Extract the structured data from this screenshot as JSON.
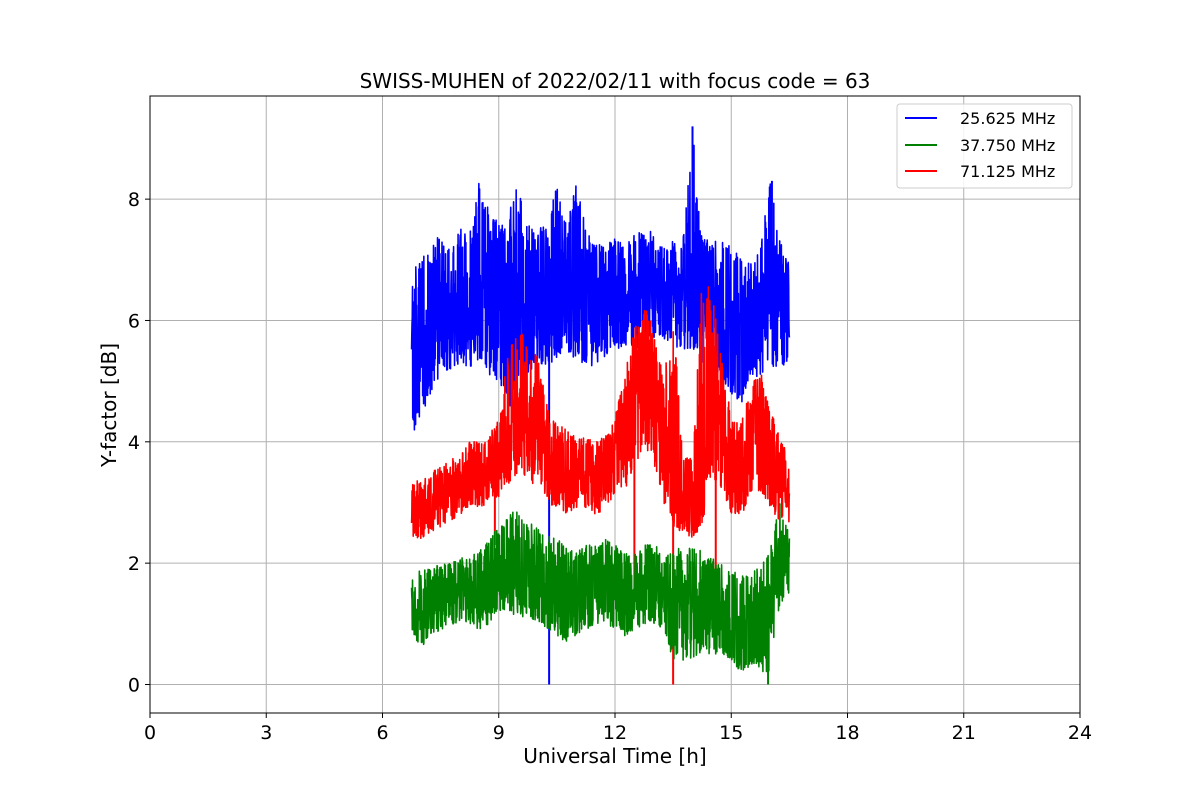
{
  "chart_data": {
    "type": "line",
    "title": "SWISS-MUHEN of 2022/02/11 with focus code = 63",
    "xlabel": "Universal Time [h]",
    "ylabel": "Y-factor [dB]",
    "xlim": [
      0,
      24
    ],
    "ylim": [
      -0.47,
      9.7
    ],
    "xticks": [
      0,
      3,
      6,
      9,
      12,
      15,
      18,
      21,
      24
    ],
    "yticks": [
      0,
      2,
      4,
      6,
      8
    ],
    "grid": true,
    "legend_position": "top-right",
    "series": [
      {
        "name": "25.625 MHz",
        "color": "#0000ff",
        "x": [
          6.75,
          7.0,
          7.25,
          7.5,
          7.75,
          8.0,
          8.25,
          8.5,
          8.75,
          9.0,
          9.25,
          9.5,
          9.75,
          10.0,
          10.25,
          10.5,
          10.75,
          11.0,
          11.25,
          11.5,
          11.75,
          12.0,
          12.25,
          12.5,
          12.75,
          13.0,
          13.25,
          13.5,
          13.75,
          14.0,
          14.25,
          14.5,
          14.75,
          15.0,
          15.25,
          15.5,
          15.75,
          16.0,
          16.25,
          16.5
        ],
        "mean": [
          5.9,
          5.7,
          5.9,
          6.0,
          6.0,
          6.1,
          6.2,
          6.3,
          6.2,
          6.1,
          6.0,
          6.1,
          6.0,
          6.2,
          6.2,
          6.3,
          6.4,
          6.3,
          6.2,
          6.2,
          6.2,
          6.3,
          6.3,
          6.4,
          6.4,
          6.5,
          6.5,
          6.4,
          6.3,
          6.4,
          6.3,
          6.3,
          6.1,
          6.0,
          5.8,
          5.9,
          6.0,
          6.1,
          6.2,
          6.2
        ],
        "low": [
          4.1,
          4.4,
          4.8,
          5.1,
          5.2,
          5.3,
          5.2,
          5.3,
          5.1,
          5.0,
          4.5,
          5.0,
          5.1,
          5.3,
          5.2,
          5.4,
          5.5,
          5.3,
          5.3,
          5.2,
          5.4,
          5.5,
          5.6,
          5.5,
          5.6,
          5.7,
          5.7,
          5.6,
          5.5,
          5.5,
          5.3,
          5.3,
          5.0,
          4.8,
          4.6,
          5.0,
          5.1,
          5.2,
          5.2,
          5.3
        ],
        "high": [
          6.9,
          7.0,
          7.3,
          7.4,
          7.2,
          7.5,
          7.6,
          8.3,
          7.8,
          7.6,
          7.7,
          8.4,
          7.6,
          7.6,
          7.5,
          8.3,
          7.6,
          8.3,
          7.5,
          7.3,
          7.2,
          7.4,
          7.3,
          7.5,
          7.4,
          7.5,
          7.3,
          7.3,
          7.3,
          9.2,
          7.4,
          7.3,
          7.4,
          7.2,
          7.1,
          7.0,
          7.2,
          8.3,
          7.4,
          6.9
        ],
        "spikes": [
          [
            10.3,
            0.0
          ],
          [
            14.0,
            9.2
          ],
          [
            16.05,
            8.3
          ]
        ]
      },
      {
        "name": "37.750 MHz",
        "color": "#008000",
        "x": [
          6.75,
          7.0,
          7.25,
          7.5,
          7.75,
          8.0,
          8.25,
          8.5,
          8.75,
          9.0,
          9.25,
          9.5,
          9.75,
          10.0,
          10.25,
          10.5,
          10.75,
          11.0,
          11.25,
          11.5,
          11.75,
          12.0,
          12.25,
          12.5,
          12.75,
          13.0,
          13.25,
          13.5,
          13.75,
          14.0,
          14.25,
          14.5,
          14.75,
          15.0,
          15.25,
          15.5,
          15.75,
          16.0,
          16.25,
          16.5
        ],
        "mean": [
          1.3,
          1.2,
          1.3,
          1.4,
          1.4,
          1.5,
          1.5,
          1.5,
          1.6,
          1.8,
          1.9,
          1.8,
          1.8,
          1.7,
          1.6,
          1.5,
          1.4,
          1.4,
          1.5,
          1.6,
          1.6,
          1.5,
          1.4,
          1.5,
          1.6,
          1.6,
          1.5,
          1.4,
          1.3,
          1.3,
          1.3,
          1.2,
          1.1,
          1.0,
          0.8,
          0.9,
          1.0,
          1.1,
          1.8,
          1.9
        ],
        "low": [
          0.8,
          0.6,
          0.8,
          0.9,
          1.0,
          1.0,
          1.0,
          0.9,
          1.0,
          1.2,
          1.2,
          1.1,
          1.1,
          1.0,
          0.9,
          0.8,
          0.7,
          0.8,
          0.9,
          1.0,
          1.0,
          0.9,
          0.8,
          0.9,
          1.0,
          1.0,
          0.9,
          0.4,
          0.4,
          0.4,
          0.5,
          0.5,
          0.5,
          0.4,
          0.2,
          0.3,
          0.2,
          0.2,
          1.3,
          1.5
        ],
        "high": [
          1.8,
          1.9,
          1.9,
          2.0,
          2.0,
          2.1,
          2.1,
          2.2,
          2.4,
          2.6,
          2.8,
          2.9,
          2.7,
          2.6,
          2.5,
          2.4,
          2.3,
          2.2,
          2.3,
          2.3,
          2.4,
          2.3,
          2.2,
          2.2,
          2.3,
          2.3,
          2.2,
          2.3,
          2.2,
          2.3,
          2.2,
          2.1,
          2.0,
          1.9,
          1.8,
          1.9,
          2.0,
          2.2,
          3.0,
          2.5
        ],
        "spikes": [
          [
            15.95,
            0.0
          ]
        ]
      },
      {
        "name": "71.125 MHz",
        "color": "#ff0000",
        "x": [
          6.75,
          7.0,
          7.25,
          7.5,
          7.75,
          8.0,
          8.25,
          8.5,
          8.75,
          9.0,
          9.25,
          9.5,
          9.75,
          10.0,
          10.25,
          10.5,
          10.75,
          11.0,
          11.25,
          11.5,
          11.75,
          12.0,
          12.25,
          12.5,
          12.75,
          13.0,
          13.25,
          13.5,
          13.75,
          14.0,
          14.25,
          14.5,
          14.75,
          15.0,
          15.25,
          15.5,
          15.75,
          16.0,
          16.25,
          16.5
        ],
        "mean": [
          2.9,
          2.9,
          3.0,
          3.1,
          3.2,
          3.3,
          3.4,
          3.5,
          3.6,
          3.8,
          4.1,
          4.6,
          4.4,
          4.3,
          3.9,
          3.6,
          3.5,
          3.5,
          3.5,
          3.4,
          3.5,
          3.7,
          4.2,
          4.9,
          5.3,
          5.0,
          4.0,
          3.3,
          3.1,
          3.0,
          3.2,
          5.3,
          4.4,
          3.6,
          3.5,
          3.8,
          4.3,
          3.8,
          3.4,
          3.2
        ],
        "low": [
          2.4,
          2.4,
          2.5,
          2.6,
          2.7,
          2.8,
          2.9,
          2.9,
          3.0,
          3.1,
          3.3,
          3.5,
          3.4,
          3.2,
          3.0,
          2.9,
          2.8,
          2.9,
          2.9,
          2.8,
          2.9,
          3.0,
          3.2,
          3.5,
          4.0,
          3.6,
          3.0,
          2.6,
          2.5,
          2.4,
          2.6,
          3.5,
          3.1,
          2.8,
          2.8,
          3.0,
          3.2,
          2.9,
          2.7,
          2.6
        ],
        "high": [
          3.3,
          3.4,
          3.5,
          3.6,
          3.7,
          3.8,
          4.0,
          4.0,
          4.1,
          4.4,
          5.5,
          5.9,
          5.6,
          5.4,
          4.6,
          4.3,
          4.2,
          4.1,
          4.1,
          4.0,
          4.1,
          4.4,
          5.1,
          5.9,
          6.2,
          6.0,
          5.0,
          6.1,
          3.8,
          3.7,
          6.8,
          6.5,
          5.4,
          4.4,
          4.3,
          4.9,
          5.2,
          4.5,
          4.2,
          3.6
        ],
        "spikes": [
          [
            13.5,
            0.0
          ],
          [
            12.5,
            1.4
          ],
          [
            14.6,
            1.2
          ],
          [
            8.9,
            2.3
          ]
        ]
      }
    ]
  }
}
